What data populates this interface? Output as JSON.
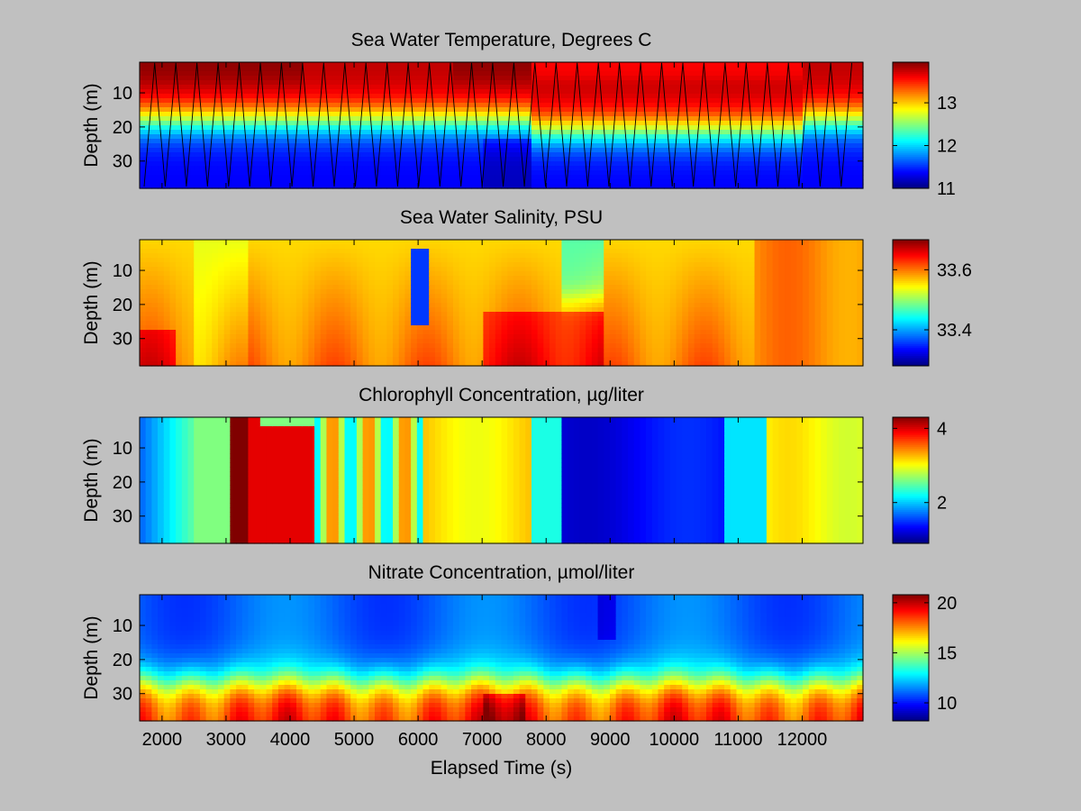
{
  "figure": {
    "background": "#c0c0c0",
    "colormap": "jet",
    "shared_xlabel": "Elapsed Time (s)"
  },
  "chart_data": [
    {
      "type": "heatmap",
      "title": "Sea Water Temperature, Degrees C",
      "ylabel": "Depth (m)",
      "xlim": [
        1650,
        12950
      ],
      "ylim": [
        38,
        1
      ],
      "yticks": [
        10,
        20,
        30
      ],
      "xticks": [],
      "clim": [
        11,
        13.95
      ],
      "colorbar_ticks": [
        11,
        12,
        13
      ],
      "field": "temperature",
      "profile_overlay": true,
      "show_xticklabels": false
    },
    {
      "type": "heatmap",
      "title": "Sea Water Salinity, PSU",
      "ylabel": "Depth (m)",
      "xlim": [
        1650,
        12950
      ],
      "ylim": [
        38,
        1
      ],
      "yticks": [
        10,
        20,
        30
      ],
      "clim": [
        33.28,
        33.7
      ],
      "colorbar_ticks": [
        33.4,
        33.6
      ],
      "field": "salinity",
      "profile_overlay": false,
      "show_xticklabels": false
    },
    {
      "type": "heatmap",
      "title": "Chlorophyll Concentration, µg/liter",
      "ylabel": "Depth (m)",
      "xlim": [
        1650,
        12950
      ],
      "ylim": [
        38,
        1
      ],
      "yticks": [
        10,
        20,
        30
      ],
      "clim": [
        0.9,
        4.3
      ],
      "colorbar_ticks": [
        2,
        4
      ],
      "field": "chlorophyll",
      "profile_overlay": false,
      "show_xticklabels": false
    },
    {
      "type": "heatmap",
      "title": "Nitrate Concentration, µmol/liter",
      "ylabel": "Depth (m)",
      "xlabel": "Elapsed Time (s)",
      "xlim": [
        1650,
        12950
      ],
      "ylim": [
        38,
        1
      ],
      "yticks": [
        10,
        20,
        30
      ],
      "xtick_labels": [
        "2000",
        "3000",
        "4000",
        "5000",
        "6000",
        "7000",
        "8000",
        "9000",
        "10000",
        "11000",
        "12000"
      ],
      "xtick_values": [
        2000,
        3000,
        4000,
        5000,
        6000,
        7000,
        8000,
        9000,
        10000,
        11000,
        12000
      ],
      "clim": [
        8.2,
        20.8
      ],
      "colorbar_ticks": [
        10,
        15,
        20
      ],
      "field": "nitrate",
      "profile_overlay": false,
      "show_xticklabels": true
    }
  ]
}
